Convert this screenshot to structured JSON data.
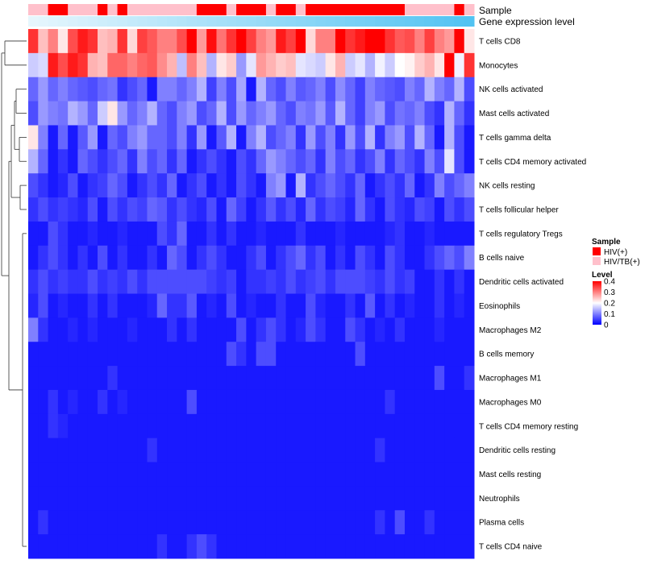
{
  "chart_data": {
    "type": "heatmap",
    "annotation_labels": {
      "sample": "Sample",
      "gene_expression": "Gene expression level"
    },
    "row_labels": [
      "T cells CD8",
      "Monocytes",
      "NK cells activated",
      "Mast cells activated",
      "T cells gamma delta",
      "T cells CD4 memory activated",
      "NK cells resting",
      "T cells follicular helper",
      "T cells regulatory  Tregs",
      "B cells naive",
      "Dendritic cells activated",
      "Eosinophils",
      "Macrophages M2",
      "B cells memory",
      "Macrophages M1",
      "Macrophages M0",
      "T cells CD4 memory resting",
      "Dendritic cells resting",
      "Mast cells resting",
      "Neutrophils",
      "Plasma cells",
      "T cells CD4 naive"
    ],
    "n_columns": 45,
    "sample_groups": [
      "HIV/TB(+)",
      "HIV/TB(+)",
      "HIV(+)",
      "HIV(+)",
      "HIV/TB(+)",
      "HIV/TB(+)",
      "HIV/TB(+)",
      "HIV(+)",
      "HIV/TB(+)",
      "HIV(+)",
      "HIV/TB(+)",
      "HIV/TB(+)",
      "HIV/TB(+)",
      "HIV/TB(+)",
      "HIV/TB(+)",
      "HIV/TB(+)",
      "HIV/TB(+)",
      "HIV(+)",
      "HIV(+)",
      "HIV(+)",
      "HIV/TB(+)",
      "HIV(+)",
      "HIV(+)",
      "HIV(+)",
      "HIV/TB(+)",
      "HIV(+)",
      "HIV(+)",
      "HIV/TB(+)",
      "HIV(+)",
      "HIV(+)",
      "HIV(+)",
      "HIV(+)",
      "HIV(+)",
      "HIV(+)",
      "HIV(+)",
      "HIV(+)",
      "HIV(+)",
      "HIV(+)",
      "HIV/TB(+)",
      "HIV/TB(+)",
      "HIV/TB(+)",
      "HIV/TB(+)",
      "HIV/TB(+)",
      "HIV(+)",
      "HIV/TB(+)"
    ],
    "values": [
      [
        0.36,
        0.25,
        0.3,
        0.22,
        0.34,
        0.38,
        0.36,
        0.25,
        0.26,
        0.36,
        0.23,
        0.35,
        0.33,
        0.3,
        0.3,
        0.34,
        0.4,
        0.28,
        0.39,
        0.31,
        0.36,
        0.4,
        0.35,
        0.3,
        0.28,
        0.38,
        0.35,
        0.4,
        0.23,
        0.3,
        0.3,
        0.4,
        0.36,
        0.38,
        0.4,
        0.4,
        0.36,
        0.33,
        0.34,
        0.3,
        0.35,
        0.3,
        0.28,
        0.4,
        0.22
      ],
      [
        0.16,
        0.17,
        0.38,
        0.34,
        0.38,
        0.36,
        0.26,
        0.25,
        0.32,
        0.32,
        0.3,
        0.32,
        0.33,
        0.29,
        0.26,
        0.15,
        0.3,
        0.25,
        0.14,
        0.22,
        0.24,
        0.12,
        0.18,
        0.28,
        0.26,
        0.24,
        0.25,
        0.18,
        0.17,
        0.16,
        0.22,
        0.26,
        0.16,
        0.18,
        0.14,
        0.19,
        0.16,
        0.2,
        0.21,
        0.24,
        0.26,
        0.22,
        0.4,
        0.19,
        0.36
      ],
      [
        0.08,
        0.12,
        0.08,
        0.1,
        0.08,
        0.07,
        0.06,
        0.08,
        0.09,
        0.04,
        0.06,
        0.08,
        0.02,
        0.1,
        0.1,
        0.08,
        0.1,
        0.14,
        0.05,
        0.1,
        0.06,
        0.13,
        0.02,
        0.14,
        0.08,
        0.06,
        0.1,
        0.07,
        0.08,
        0.1,
        0.06,
        0.11,
        0.08,
        0.05,
        0.1,
        0.08,
        0.07,
        0.06,
        0.1,
        0.08,
        0.14,
        0.1,
        0.08,
        0.14,
        0.06
      ],
      [
        0.06,
        0.12,
        0.1,
        0.09,
        0.14,
        0.12,
        0.08,
        0.16,
        0.22,
        0.12,
        0.08,
        0.1,
        0.14,
        0.08,
        0.06,
        0.1,
        0.12,
        0.06,
        0.08,
        0.14,
        0.06,
        0.12,
        0.08,
        0.1,
        0.12,
        0.08,
        0.06,
        0.1,
        0.09,
        0.12,
        0.07,
        0.14,
        0.08,
        0.05,
        0.1,
        0.12,
        0.06,
        0.09,
        0.08,
        0.1,
        0.06,
        0.04,
        0.14,
        0.08,
        0.04
      ],
      [
        0.22,
        0.1,
        0.02,
        0.08,
        0.02,
        0.07,
        0.12,
        0.02,
        0.08,
        0.06,
        0.1,
        0.12,
        0.08,
        0.08,
        0.06,
        0.1,
        0.04,
        0.12,
        0.02,
        0.07,
        0.14,
        0.02,
        0.1,
        0.14,
        0.06,
        0.08,
        0.1,
        0.04,
        0.12,
        0.06,
        0.1,
        0.04,
        0.12,
        0.06,
        0.14,
        0.04,
        0.1,
        0.12,
        0.06,
        0.14,
        0.08,
        0.02,
        0.14,
        0.06,
        0.02
      ],
      [
        0.14,
        0.08,
        0.02,
        0.04,
        0.02,
        0.08,
        0.06,
        0.04,
        0.06,
        0.08,
        0.04,
        0.1,
        0.06,
        0.08,
        0.04,
        0.08,
        0.02,
        0.04,
        0.06,
        0.04,
        0.02,
        0.06,
        0.04,
        0.08,
        0.12,
        0.1,
        0.08,
        0.06,
        0.08,
        0.04,
        0.1,
        0.06,
        0.08,
        0.04,
        0.06,
        0.1,
        0.04,
        0.08,
        0.06,
        0.04,
        0.1,
        0.06,
        0.18,
        0.06,
        0.02
      ],
      [
        0.06,
        0.04,
        0.02,
        0.03,
        0.06,
        0.02,
        0.04,
        0.05,
        0.08,
        0.06,
        0.02,
        0.04,
        0.06,
        0.04,
        0.08,
        0.02,
        0.04,
        0.06,
        0.02,
        0.04,
        0.02,
        0.06,
        0.04,
        0.02,
        0.1,
        0.12,
        0.02,
        0.14,
        0.04,
        0.06,
        0.08,
        0.06,
        0.04,
        0.08,
        0.02,
        0.04,
        0.06,
        0.04,
        0.08,
        0.02,
        0.04,
        0.1,
        0.06,
        0.08,
        0.1
      ],
      [
        0.04,
        0.06,
        0.04,
        0.05,
        0.04,
        0.03,
        0.06,
        0.02,
        0.06,
        0.04,
        0.06,
        0.05,
        0.08,
        0.07,
        0.04,
        0.06,
        0.04,
        0.03,
        0.06,
        0.02,
        0.08,
        0.05,
        0.02,
        0.04,
        0.07,
        0.04,
        0.06,
        0.03,
        0.08,
        0.04,
        0.06,
        0.05,
        0.03,
        0.08,
        0.04,
        0.02,
        0.06,
        0.04,
        0.03,
        0.06,
        0.05,
        0.02,
        0.06,
        0.04,
        0.06
      ],
      [
        0.02,
        0.02,
        0.06,
        0.04,
        0.02,
        0.02,
        0.03,
        0.02,
        0.02,
        0.03,
        0.02,
        0.02,
        0.02,
        0.06,
        0.04,
        0.08,
        0.02,
        0.02,
        0.04,
        0.02,
        0.04,
        0.02,
        0.02,
        0.03,
        0.02,
        0.02,
        0.02,
        0.04,
        0.02,
        0.02,
        0.02,
        0.03,
        0.02,
        0.02,
        0.02,
        0.02,
        0.03,
        0.04,
        0.02,
        0.02,
        0.03,
        0.02,
        0.02,
        0.02,
        0.02
      ],
      [
        0.02,
        0.04,
        0.06,
        0.04,
        0.02,
        0.04,
        0.02,
        0.06,
        0.02,
        0.04,
        0.02,
        0.02,
        0.04,
        0.02,
        0.08,
        0.06,
        0.02,
        0.04,
        0.06,
        0.04,
        0.02,
        0.02,
        0.04,
        0.06,
        0.02,
        0.04,
        0.06,
        0.08,
        0.04,
        0.06,
        0.02,
        0.04,
        0.02,
        0.06,
        0.04,
        0.02,
        0.06,
        0.04,
        0.02,
        0.02,
        0.04,
        0.06,
        0.08,
        0.06,
        0.1
      ],
      [
        0.04,
        0.06,
        0.04,
        0.05,
        0.04,
        0.04,
        0.06,
        0.04,
        0.05,
        0.04,
        0.06,
        0.04,
        0.06,
        0.06,
        0.06,
        0.06,
        0.06,
        0.06,
        0.05,
        0.04,
        0.05,
        0.02,
        0.04,
        0.04,
        0.05,
        0.04,
        0.06,
        0.04,
        0.05,
        0.06,
        0.04,
        0.06,
        0.06,
        0.06,
        0.05,
        0.04,
        0.06,
        0.04,
        0.05,
        0.02,
        0.02,
        0.04,
        0.02,
        0.04,
        0.02
      ],
      [
        0.03,
        0.06,
        0.02,
        0.03,
        0.02,
        0.02,
        0.04,
        0.02,
        0.04,
        0.02,
        0.02,
        0.02,
        0.03,
        0.08,
        0.04,
        0.04,
        0.07,
        0.02,
        0.03,
        0.02,
        0.06,
        0.02,
        0.03,
        0.02,
        0.02,
        0.04,
        0.02,
        0.02,
        0.06,
        0.03,
        0.02,
        0.02,
        0.04,
        0.02,
        0.07,
        0.02,
        0.04,
        0.02,
        0.03,
        0.02,
        0.02,
        0.04,
        0.02,
        0.03,
        0.02
      ],
      [
        0.1,
        0.04,
        0.02,
        0.02,
        0.03,
        0.02,
        0.03,
        0.02,
        0.02,
        0.02,
        0.03,
        0.02,
        0.02,
        0.02,
        0.04,
        0.02,
        0.04,
        0.02,
        0.02,
        0.02,
        0.02,
        0.06,
        0.02,
        0.04,
        0.06,
        0.04,
        0.02,
        0.03,
        0.06,
        0.04,
        0.02,
        0.02,
        0.06,
        0.04,
        0.02,
        0.03,
        0.02,
        0.04,
        0.02,
        0.02,
        0.02,
        0.03,
        0.02,
        0.02,
        0.02
      ],
      [
        0.02,
        0.02,
        0.02,
        0.02,
        0.02,
        0.02,
        0.02,
        0.02,
        0.02,
        0.02,
        0.02,
        0.02,
        0.02,
        0.02,
        0.02,
        0.02,
        0.02,
        0.02,
        0.02,
        0.02,
        0.06,
        0.04,
        0.02,
        0.06,
        0.06,
        0.02,
        0.02,
        0.02,
        0.02,
        0.02,
        0.02,
        0.02,
        0.02,
        0.06,
        0.02,
        0.02,
        0.02,
        0.02,
        0.02,
        0.02,
        0.02,
        0.02,
        0.02,
        0.02,
        0.02
      ],
      [
        0.02,
        0.02,
        0.02,
        0.02,
        0.02,
        0.02,
        0.02,
        0.02,
        0.04,
        0.02,
        0.02,
        0.02,
        0.02,
        0.02,
        0.02,
        0.02,
        0.02,
        0.02,
        0.02,
        0.02,
        0.02,
        0.02,
        0.02,
        0.02,
        0.02,
        0.02,
        0.02,
        0.02,
        0.02,
        0.02,
        0.02,
        0.02,
        0.02,
        0.02,
        0.02,
        0.02,
        0.02,
        0.02,
        0.02,
        0.02,
        0.02,
        0.06,
        0.02,
        0.02,
        0.04
      ],
      [
        0.02,
        0.02,
        0.04,
        0.02,
        0.03,
        0.02,
        0.02,
        0.04,
        0.02,
        0.03,
        0.02,
        0.02,
        0.02,
        0.02,
        0.02,
        0.02,
        0.06,
        0.02,
        0.02,
        0.02,
        0.02,
        0.02,
        0.02,
        0.02,
        0.02,
        0.02,
        0.02,
        0.02,
        0.02,
        0.02,
        0.02,
        0.02,
        0.02,
        0.02,
        0.02,
        0.02,
        0.04,
        0.02,
        0.02,
        0.02,
        0.02,
        0.02,
        0.02,
        0.02,
        0.02
      ],
      [
        0.02,
        0.02,
        0.04,
        0.03,
        0.02,
        0.02,
        0.02,
        0.02,
        0.02,
        0.02,
        0.02,
        0.02,
        0.02,
        0.02,
        0.02,
        0.02,
        0.02,
        0.02,
        0.02,
        0.02,
        0.02,
        0.02,
        0.02,
        0.02,
        0.02,
        0.02,
        0.02,
        0.02,
        0.02,
        0.02,
        0.02,
        0.02,
        0.02,
        0.02,
        0.02,
        0.02,
        0.02,
        0.02,
        0.02,
        0.02,
        0.02,
        0.02,
        0.02,
        0.02,
        0.02
      ],
      [
        0.02,
        0.02,
        0.02,
        0.02,
        0.02,
        0.02,
        0.02,
        0.02,
        0.02,
        0.02,
        0.02,
        0.02,
        0.04,
        0.02,
        0.02,
        0.02,
        0.02,
        0.02,
        0.02,
        0.02,
        0.02,
        0.02,
        0.02,
        0.02,
        0.02,
        0.02,
        0.02,
        0.02,
        0.02,
        0.02,
        0.02,
        0.02,
        0.02,
        0.02,
        0.02,
        0.04,
        0.02,
        0.02,
        0.02,
        0.02,
        0.02,
        0.02,
        0.02,
        0.02,
        0.02
      ],
      [
        0.02,
        0.02,
        0.02,
        0.02,
        0.02,
        0.02,
        0.02,
        0.02,
        0.02,
        0.02,
        0.02,
        0.02,
        0.02,
        0.02,
        0.02,
        0.02,
        0.02,
        0.02,
        0.02,
        0.02,
        0.02,
        0.02,
        0.02,
        0.02,
        0.02,
        0.02,
        0.02,
        0.02,
        0.02,
        0.02,
        0.02,
        0.02,
        0.02,
        0.02,
        0.02,
        0.02,
        0.02,
        0.02,
        0.02,
        0.02,
        0.02,
        0.02,
        0.02,
        0.02,
        0.02
      ],
      [
        0.02,
        0.02,
        0.02,
        0.02,
        0.02,
        0.02,
        0.02,
        0.02,
        0.02,
        0.02,
        0.02,
        0.02,
        0.02,
        0.02,
        0.02,
        0.02,
        0.02,
        0.02,
        0.02,
        0.02,
        0.02,
        0.02,
        0.02,
        0.02,
        0.02,
        0.02,
        0.02,
        0.02,
        0.02,
        0.02,
        0.02,
        0.02,
        0.02,
        0.02,
        0.02,
        0.02,
        0.02,
        0.02,
        0.02,
        0.02,
        0.02,
        0.02,
        0.02,
        0.02,
        0.02
      ],
      [
        0.02,
        0.04,
        0.02,
        0.02,
        0.02,
        0.02,
        0.02,
        0.02,
        0.02,
        0.02,
        0.02,
        0.02,
        0.02,
        0.02,
        0.02,
        0.02,
        0.02,
        0.02,
        0.02,
        0.02,
        0.02,
        0.02,
        0.02,
        0.02,
        0.02,
        0.02,
        0.02,
        0.02,
        0.02,
        0.02,
        0.02,
        0.02,
        0.02,
        0.02,
        0.02,
        0.04,
        0.02,
        0.06,
        0.02,
        0.02,
        0.04,
        0.02,
        0.02,
        0.02,
        0.02
      ],
      [
        0.02,
        0.02,
        0.02,
        0.02,
        0.02,
        0.02,
        0.02,
        0.02,
        0.02,
        0.02,
        0.02,
        0.02,
        0.02,
        0.04,
        0.02,
        0.02,
        0.04,
        0.06,
        0.04,
        0.02,
        0.02,
        0.02,
        0.02,
        0.02,
        0.02,
        0.02,
        0.02,
        0.02,
        0.02,
        0.02,
        0.02,
        0.02,
        0.02,
        0.02,
        0.02,
        0.02,
        0.02,
        0.02,
        0.02,
        0.02,
        0.02,
        0.02,
        0.02,
        0.02,
        0.02
      ]
    ],
    "legend": {
      "sample_title": "Sample",
      "sample_entries": [
        {
          "label": "HIV(+)",
          "color": "#ff0000"
        },
        {
          "label": "HIV/TB(+)",
          "color": "#ffc0cb"
        }
      ],
      "level_title": "Level",
      "level_ticks": [
        "0.4",
        "0.3",
        "0.2",
        "0.1",
        "0"
      ],
      "level_tick_values": [
        0.4,
        0.3,
        0.2,
        0.1,
        0
      ],
      "level_range": [
        0,
        0.4
      ]
    },
    "colors": {
      "low": "#0000ff",
      "mid": "#ffffff",
      "high": "#ff0000",
      "gene_bar_start": "#e6f6fd",
      "gene_bar_end": "#52c3f2"
    }
  }
}
